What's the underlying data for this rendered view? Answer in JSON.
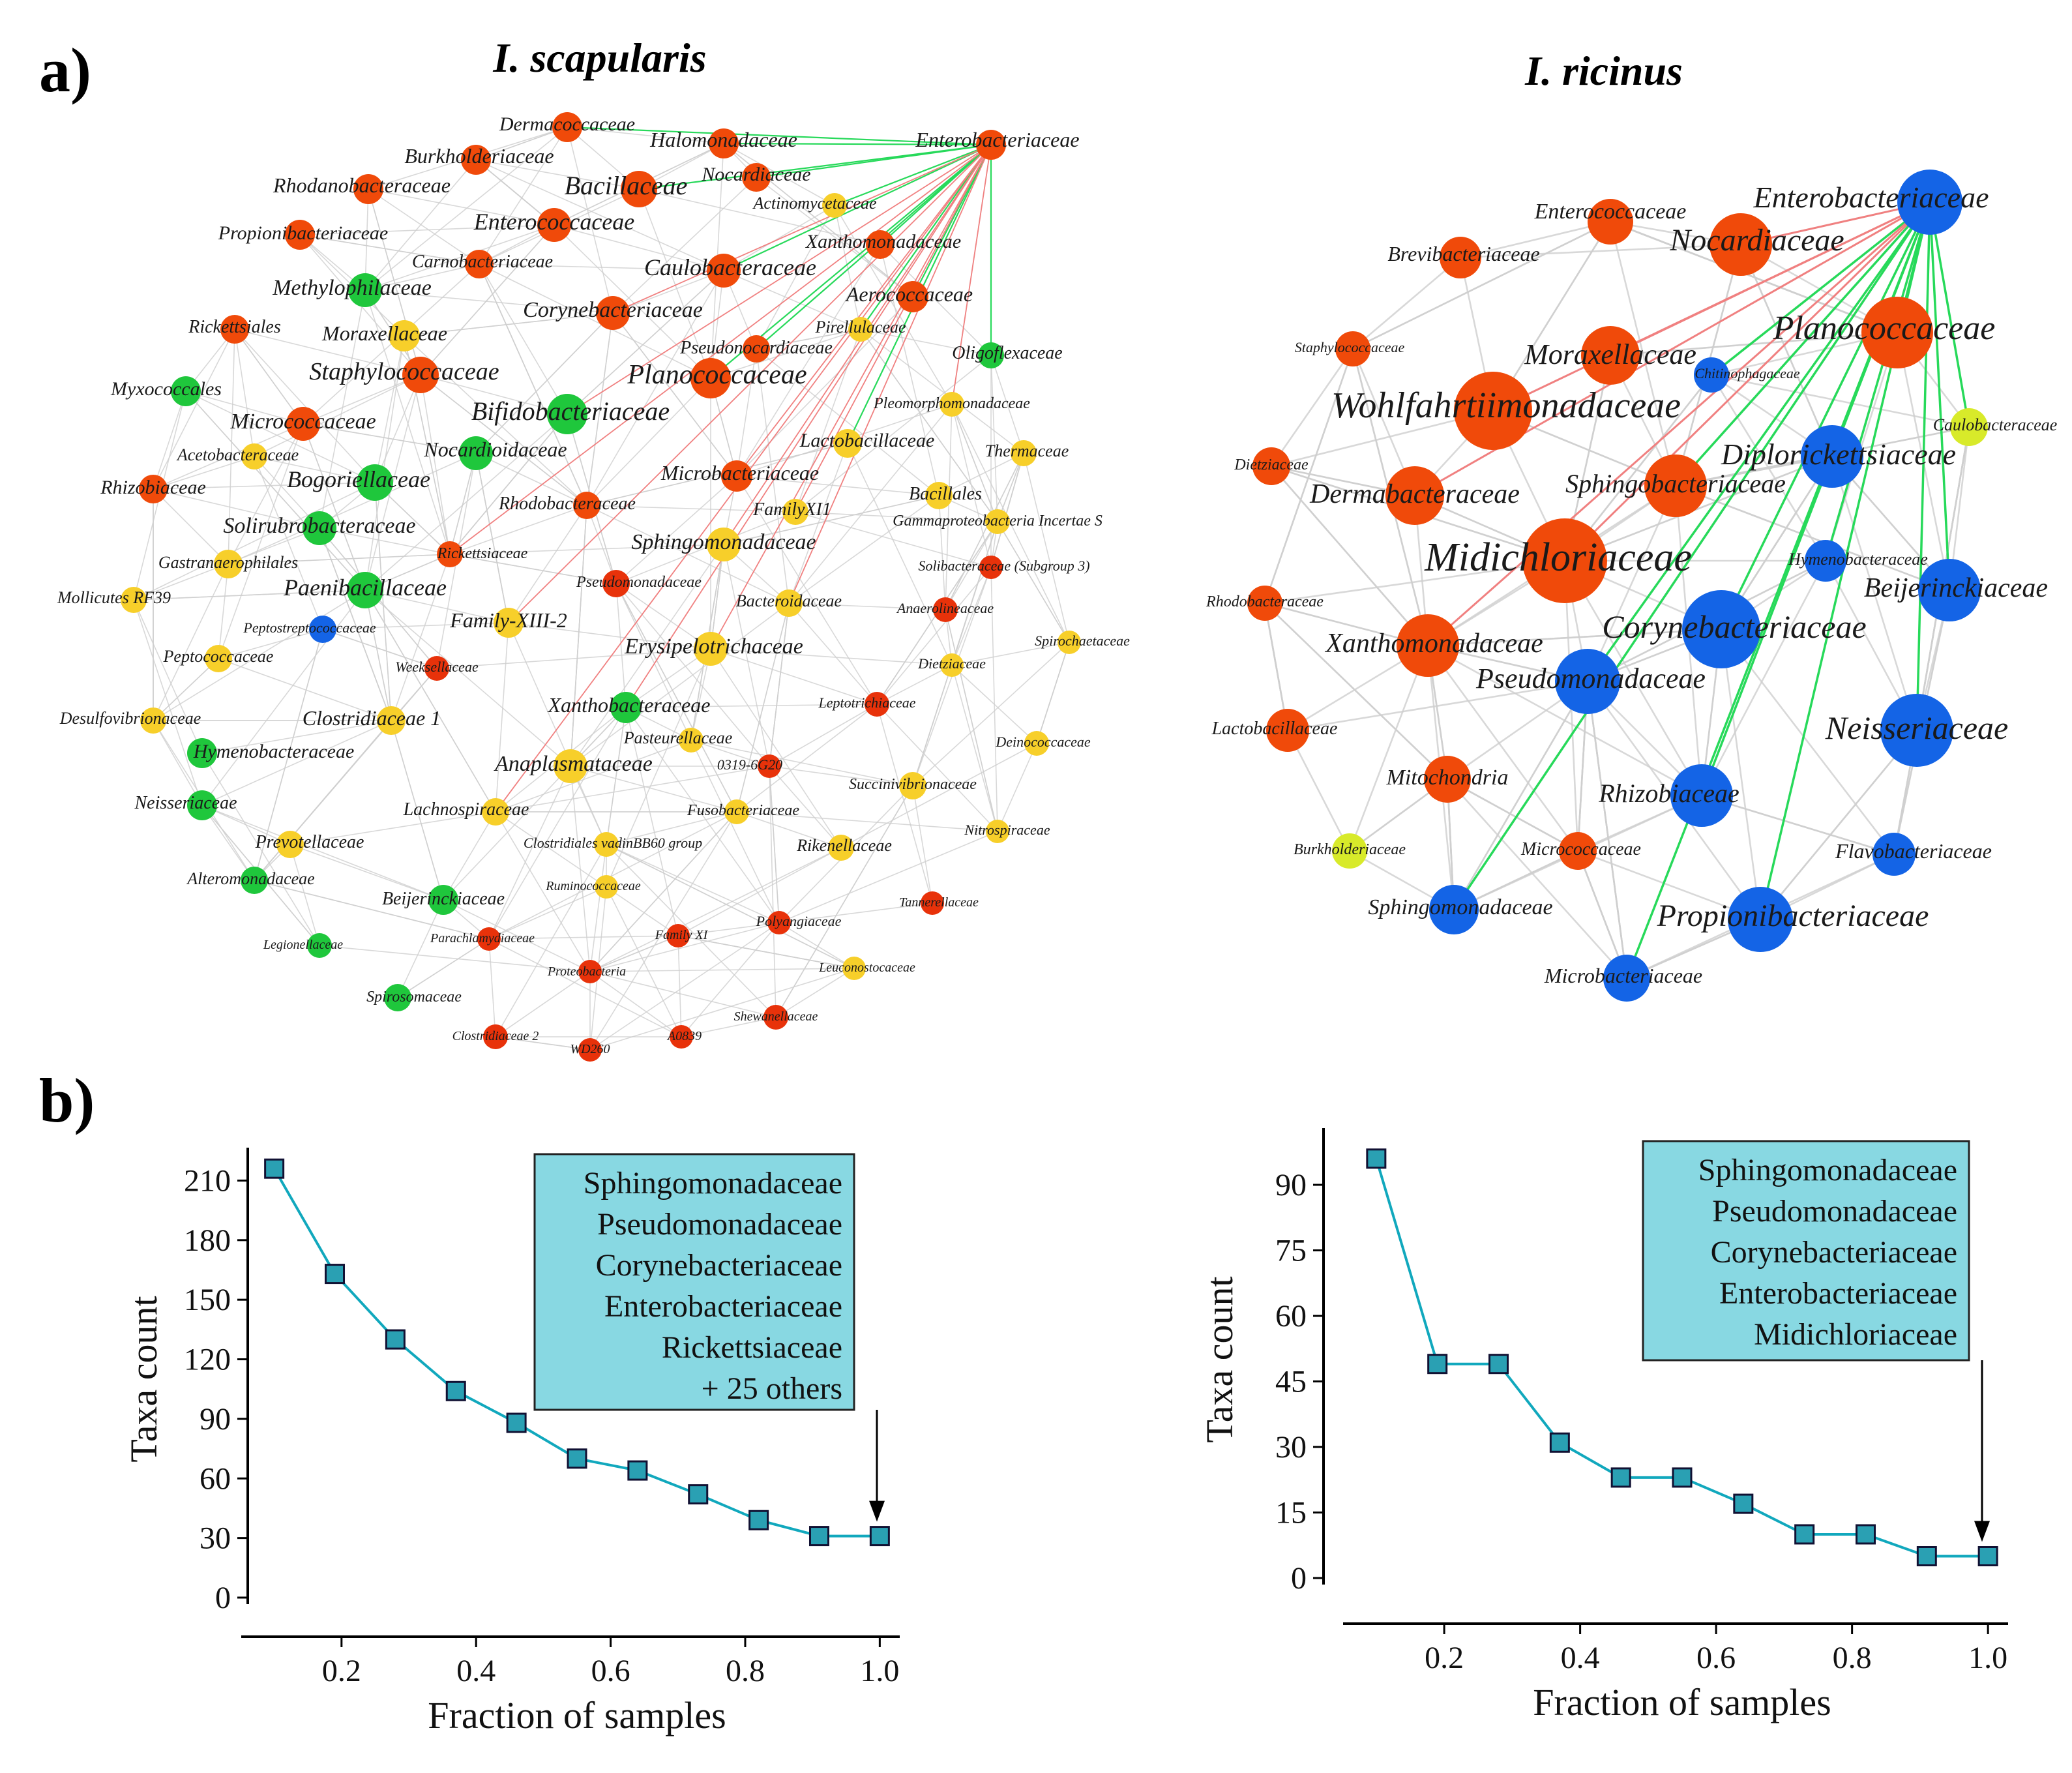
{
  "figure": {
    "panel_a_label": "a)",
    "panel_b_label": "b)",
    "colors": {
      "orange": "#f04a0a",
      "yellow": "#f7cf2a",
      "green": "#1fc73c",
      "blue": "#1464e6",
      "lime": "#d8ea2a",
      "red_dark": "#e8320a",
      "edge_gray": "#cfcfcf",
      "edge_green": "#27d95a",
      "edge_red": "#f08080",
      "line_teal": "#11a8bd",
      "marker_fill": "#2aa0b3",
      "box_fill": "#88d8e2"
    },
    "networks": [
      {
        "title": "I. scapularis",
        "hub": "Enterobacteriaceae",
        "nodes": [
          {
            "label": "Dermacoccaceae",
            "c": "orange",
            "s": 34
          },
          {
            "label": "Halomonadaceae",
            "c": "orange",
            "s": 34
          },
          {
            "label": "Enterobacteriaceae",
            "c": "orange",
            "s": 34
          },
          {
            "label": "Burkholderiaceae",
            "c": "orange",
            "s": 34
          },
          {
            "label": "Nocardiaceae",
            "c": "orange",
            "s": 32
          },
          {
            "label": "Rhodanobacteraceae",
            "c": "orange",
            "s": 34
          },
          {
            "label": "Bacillaceae",
            "c": "orange",
            "s": 44
          },
          {
            "label": "Actinomycetaceae",
            "c": "yellow",
            "s": 26
          },
          {
            "label": "Propionibacteriaceae",
            "c": "orange",
            "s": 34
          },
          {
            "label": "Enterococcaceae",
            "c": "orange",
            "s": 40
          },
          {
            "label": "Xanthomonadaceae",
            "c": "orange",
            "s": 32
          },
          {
            "label": "Carnobacteriaceae",
            "c": "orange",
            "s": 32
          },
          {
            "label": "Caulobacteraceae",
            "c": "orange",
            "s": 40
          },
          {
            "label": "Methylophilaceae",
            "c": "green",
            "s": 40
          },
          {
            "label": "Aerococcaceae",
            "c": "orange",
            "s": 36
          },
          {
            "label": "Rickettsiales",
            "c": "orange",
            "s": 32
          },
          {
            "label": "Moraxellaceae",
            "c": "yellow",
            "s": 36
          },
          {
            "label": "Corynebacteriaceae",
            "c": "orange",
            "s": 40
          },
          {
            "label": "Pirellulaceae",
            "c": "yellow",
            "s": 26
          },
          {
            "label": "Pseudonocardiaceae",
            "c": "orange",
            "s": 30
          },
          {
            "label": "Oligoflexaceae",
            "c": "green",
            "s": 28
          },
          {
            "label": "Staphylococcaceae",
            "c": "orange",
            "s": 44
          },
          {
            "label": "Planococcaceae",
            "c": "orange",
            "s": 50
          },
          {
            "label": "Myxococcales",
            "c": "green",
            "s": 34
          },
          {
            "label": "Bifidobacteriaceae",
            "c": "green",
            "s": 50
          },
          {
            "label": "Pleomorphomonadaceae",
            "c": "yellow",
            "s": 26
          },
          {
            "label": "Micrococcaceae",
            "c": "orange",
            "s": 40
          },
          {
            "label": "Lactobacillaceae",
            "c": "yellow",
            "s": 32
          },
          {
            "label": "Nocardioidaceae",
            "c": "green",
            "s": 40
          },
          {
            "label": "Acetobacteraceae",
            "c": "yellow",
            "s": 28
          },
          {
            "label": "Thermaceae",
            "c": "yellow",
            "s": 28
          },
          {
            "label": "Bogoriellaceae",
            "c": "green",
            "s": 44
          },
          {
            "label": "Microbacteriaceae",
            "c": "orange",
            "s": 36
          },
          {
            "label": "Rhizobiaceae",
            "c": "orange",
            "s": 32
          },
          {
            "label": "Bacillales",
            "c": "yellow",
            "s": 30
          },
          {
            "label": "FamilyXI1",
            "c": "yellow",
            "s": 28
          },
          {
            "label": "Rhodobacteraceae",
            "c": "orange",
            "s": 30
          },
          {
            "label": "Solirubrobacteraceae",
            "c": "green",
            "s": 40
          },
          {
            "label": "Gammaproteobacteria Incertae S",
            "c": "yellow",
            "s": 26
          },
          {
            "label": "Sphingomonadaceae",
            "c": "yellow",
            "s": 40
          },
          {
            "label": "Rickettsiaceae",
            "c": "orange",
            "s": 28
          },
          {
            "label": "Gastranaerophilales",
            "c": "yellow",
            "s": 32
          },
          {
            "label": "Solibacteraceae (Subgroup 3)",
            "c": "red_dark",
            "s": 24
          },
          {
            "label": "Pseudomonadaceae",
            "c": "red_dark",
            "s": 30
          },
          {
            "label": "Paenibacillaceae",
            "c": "green",
            "s": 44
          },
          {
            "label": "Mollicutes RF39",
            "c": "yellow",
            "s": 28
          },
          {
            "label": "Bacteroidaceae",
            "c": "yellow",
            "s": 30
          },
          {
            "label": "Anaerolineaceae",
            "c": "red_dark",
            "s": 26
          },
          {
            "label": "Peptostreptococcaceae",
            "c": "blue",
            "s": 30
          },
          {
            "label": "Family-XIII-2",
            "c": "yellow",
            "s": 34
          },
          {
            "label": "Spirochaetaceae",
            "c": "yellow",
            "s": 24
          },
          {
            "label": "Peptococcaceae",
            "c": "yellow",
            "s": 30
          },
          {
            "label": "Erysipelotrichaceae",
            "c": "yellow",
            "s": 40
          },
          {
            "label": "Weeksellaceae",
            "c": "red_dark",
            "s": 26
          },
          {
            "label": "Dietziaceae",
            "c": "yellow",
            "s": 24
          },
          {
            "label": "Xanthobacteraceae",
            "c": "green",
            "s": 36
          },
          {
            "label": "Leptotrichiaceae",
            "c": "red_dark",
            "s": 26
          },
          {
            "label": "Desulfovibrionaceae",
            "c": "yellow",
            "s": 28
          },
          {
            "label": "Clostridiaceae 1",
            "c": "yellow",
            "s": 32
          },
          {
            "label": "Pasteurellaceae",
            "c": "yellow",
            "s": 26
          },
          {
            "label": "Deinococcaceae",
            "c": "yellow",
            "s": 26
          },
          {
            "label": "Hymenobacteraceae",
            "c": "green",
            "s": 34
          },
          {
            "label": "0319-6G20",
            "c": "red_dark",
            "s": 24
          },
          {
            "label": "Anaplasmataceae",
            "c": "yellow",
            "s": 40
          },
          {
            "label": "Succinivibrionaceae",
            "c": "yellow",
            "s": 30
          },
          {
            "label": "Neisseriaceae",
            "c": "green",
            "s": 34
          },
          {
            "label": "Lachnospiraceae",
            "c": "yellow",
            "s": 30
          },
          {
            "label": "Fusobacteriaceae",
            "c": "yellow",
            "s": 26
          },
          {
            "label": "Nitrospiraceae",
            "c": "yellow",
            "s": 24
          },
          {
            "label": "Prevotellaceae",
            "c": "yellow",
            "s": 30
          },
          {
            "label": "Clostridiales vadinBB60 group",
            "c": "yellow",
            "s": 26
          },
          {
            "label": "Rikenellaceae",
            "c": "yellow",
            "s": 28
          },
          {
            "label": "Alteromonadaceae",
            "c": "green",
            "s": 30
          },
          {
            "label": "Ruminococcaceae",
            "c": "yellow",
            "s": 24
          },
          {
            "label": "Beijerinckiaceae",
            "c": "green",
            "s": 34
          },
          {
            "label": "Tannerellaceae",
            "c": "red_dark",
            "s": 24
          },
          {
            "label": "Polyangiaceae",
            "c": "red_dark",
            "s": 24
          },
          {
            "label": "Family XI",
            "c": "red_dark",
            "s": 24
          },
          {
            "label": "Parachlamydiaceae",
            "c": "red_dark",
            "s": 24
          },
          {
            "label": "Legionellaceae",
            "c": "green",
            "s": 26
          },
          {
            "label": "Leuconostocaceae",
            "c": "yellow",
            "s": 24
          },
          {
            "label": "Proteobacteria",
            "c": "red_dark",
            "s": 24
          },
          {
            "label": "Spirosomaceae",
            "c": "green",
            "s": 30
          },
          {
            "label": "Shewanellaceae",
            "c": "red_dark",
            "s": 26
          },
          {
            "label": "Clostridiaceae 2",
            "c": "red_dark",
            "s": 26
          },
          {
            "label": "A0839",
            "c": "red_dark",
            "s": 24
          },
          {
            "label": "WD260",
            "c": "red_dark",
            "s": 24
          }
        ]
      },
      {
        "title": "I. ricinus",
        "hub": "Enterobacteriaceae",
        "nodes": [
          {
            "label": "Enterococcaceae",
            "c": "orange",
            "s": 70
          },
          {
            "label": "Enterobacteriaceae",
            "c": "blue",
            "s": 100
          },
          {
            "label": "Nocardiaceae",
            "c": "orange",
            "s": 96
          },
          {
            "label": "Brevibacteriaceae",
            "c": "orange",
            "s": 64
          },
          {
            "label": "Staphylococcaceae",
            "c": "orange",
            "s": 54
          },
          {
            "label": "Planococcaceae",
            "c": "orange",
            "s": 110
          },
          {
            "label": "Moraxellaceae",
            "c": "orange",
            "s": 90
          },
          {
            "label": "Chitinophagaceae",
            "c": "blue",
            "s": 54
          },
          {
            "label": "Wohlfahrtiimonadaceae",
            "c": "orange",
            "s": 120
          },
          {
            "label": "Caulobacteraceae",
            "c": "lime",
            "s": 58
          },
          {
            "label": "Dietziaceae",
            "c": "orange",
            "s": 58
          },
          {
            "label": "Diplorickettsiaceae",
            "c": "blue",
            "s": 96
          },
          {
            "label": "Dermabacteraceae",
            "c": "orange",
            "s": 90
          },
          {
            "label": "Sphingobacteriaceae",
            "c": "orange",
            "s": 96
          },
          {
            "label": "Midichloriaceae",
            "c": "orange",
            "s": 130
          },
          {
            "label": "Hymenobacteraceae",
            "c": "blue",
            "s": 64
          },
          {
            "label": "Rhodobacteraceae",
            "c": "orange",
            "s": 54
          },
          {
            "label": "Beijerinckiaceae",
            "c": "blue",
            "s": 96
          },
          {
            "label": "Xanthomonadaceae",
            "c": "orange",
            "s": 96
          },
          {
            "label": "Corynebacteriaceae",
            "c": "blue",
            "s": 120
          },
          {
            "label": "Pseudomonadaceae",
            "c": "blue",
            "s": 100
          },
          {
            "label": "Lactobacillaceae",
            "c": "orange",
            "s": 66
          },
          {
            "label": "Neisseriaceae",
            "c": "blue",
            "s": 112
          },
          {
            "label": "Mitochondria",
            "c": "orange",
            "s": 72
          },
          {
            "label": "Rhizobiaceae",
            "c": "blue",
            "s": 96
          },
          {
            "label": "Burkholderiaceae",
            "c": "lime",
            "s": 54
          },
          {
            "label": "Micrococcaceae",
            "c": "orange",
            "s": 58
          },
          {
            "label": "Flavobacteriaceae",
            "c": "blue",
            "s": 66
          },
          {
            "label": "Sphingomonadaceae",
            "c": "blue",
            "s": 76
          },
          {
            "label": "Propionibacteriaceae",
            "c": "blue",
            "s": 100
          },
          {
            "label": "Microbacteriaceae",
            "c": "blue",
            "s": 72
          }
        ]
      }
    ],
    "charts_meta": [
      {
        "box_lines": [
          "Sphingomonadaceae",
          "Pseudomonadaceae",
          "Corynebacteriaceae",
          "Enterobacteriaceae",
          "Rickettsiaceae",
          "+ 25 others"
        ]
      },
      {
        "box_lines": [
          "Sphingomonadaceae",
          "Pseudomonadaceae",
          "Corynebacteriaceae",
          "Enterobacteriaceae",
          "Midichloriaceae"
        ]
      }
    ]
  },
  "chart_data": [
    {
      "type": "line",
      "x": [
        0.1,
        0.19,
        0.28,
        0.37,
        0.46,
        0.55,
        0.64,
        0.73,
        0.82,
        0.91,
        1.0
      ],
      "series": [
        {
          "values": [
            216,
            163,
            130,
            104,
            88,
            70,
            64,
            52,
            39,
            31,
            31
          ]
        }
      ],
      "xlabel": "Fraction of samples",
      "ylabel": "Taxa count",
      "xlim": [
        0.08,
        1.02
      ],
      "ylim": [
        0,
        220
      ],
      "xticks": [
        "0.2",
        "0.4",
        "0.6",
        "0.8",
        "1.0"
      ],
      "yticks": [
        "0",
        "30",
        "60",
        "90",
        "120",
        "150",
        "180",
        "210"
      ],
      "grid": false
    },
    {
      "type": "line",
      "x": [
        0.1,
        0.19,
        0.28,
        0.37,
        0.46,
        0.55,
        0.64,
        0.73,
        0.82,
        0.91,
        1.0
      ],
      "series": [
        {
          "values": [
            96,
            49,
            49,
            31,
            23,
            23,
            17,
            10,
            10,
            5,
            5
          ]
        }
      ],
      "xlabel": "Fraction of samples",
      "ylabel": "Taxa count",
      "xlim": [
        0.08,
        1.02
      ],
      "ylim": [
        0,
        100
      ],
      "xticks": [
        "0.2",
        "0.4",
        "0.6",
        "0.8",
        "1.0"
      ],
      "yticks": [
        "0",
        "15",
        "30",
        "45",
        "60",
        "75",
        "90"
      ],
      "grid": false
    }
  ]
}
